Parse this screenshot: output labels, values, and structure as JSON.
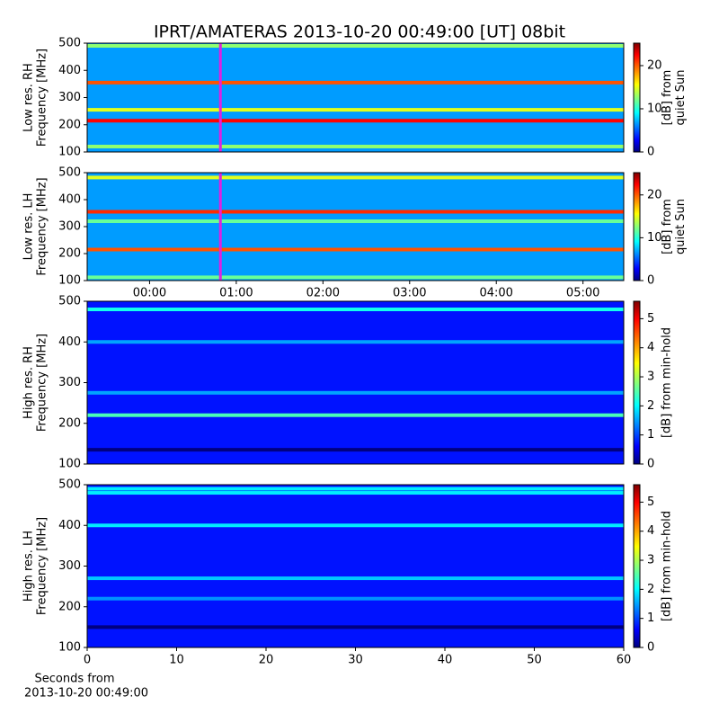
{
  "title": "IPRT/AMATERAS 2013-10-20 00:49:00 [UT]   08bit",
  "xlabel": [
    "Seconds from",
    "2013-10-20 00:49:00"
  ],
  "chart_data": [
    {
      "type": "spectrogram",
      "ylabel": [
        "Low res. RH",
        "Frequency [MHz]"
      ],
      "cbar_label": [
        "[dB] from",
        "quiet Sun"
      ],
      "xlim": [
        -0.72,
        5.47
      ],
      "xticks": [],
      "ylim": [
        100,
        500
      ],
      "yticks": [
        100,
        200,
        300,
        400,
        500
      ],
      "clim": [
        0,
        25.2
      ],
      "cbar_ticks": [
        0,
        10,
        20
      ],
      "background_level": 7,
      "marker": 0.817,
      "marker_color": "#e020e0",
      "bands": [
        {
          "freq": 490,
          "level": 13
        },
        {
          "freq": 355,
          "level": 20
        },
        {
          "freq": 255,
          "level": 15
        },
        {
          "freq": 215,
          "level": 22
        },
        {
          "freq": 120,
          "level": 13
        }
      ]
    },
    {
      "type": "spectrogram",
      "ylabel": [
        "Low res. LH",
        "Frequency [MHz]"
      ],
      "cbar_label": [
        "[dB] from",
        "quiet Sun"
      ],
      "xlim": [
        -0.72,
        5.47
      ],
      "xticks": [
        {
          "value": 0,
          "label": "00:00"
        },
        {
          "value": 1,
          "label": "01:00"
        },
        {
          "value": 2,
          "label": "02:00"
        },
        {
          "value": 3,
          "label": "03:00"
        },
        {
          "value": 4,
          "label": "04:00"
        },
        {
          "value": 5,
          "label": "05:00"
        }
      ],
      "ylim": [
        100,
        500
      ],
      "yticks": [
        100,
        200,
        300,
        400,
        500
      ],
      "clim": [
        0,
        25.2
      ],
      "cbar_ticks": [
        0,
        10,
        20
      ],
      "background_level": 7,
      "marker": 0.817,
      "marker_color": "#e020e0",
      "bands": [
        {
          "freq": 482,
          "level": 15
        },
        {
          "freq": 355,
          "level": 21
        },
        {
          "freq": 320,
          "level": 12
        },
        {
          "freq": 215,
          "level": 20
        },
        {
          "freq": 112,
          "level": 12
        }
      ]
    },
    {
      "type": "spectrogram",
      "ylabel": [
        "High res. RH",
        "Frequency [MHz]"
      ],
      "cbar_label": [
        "[dB] from min-hold"
      ],
      "xlim": [
        0,
        60
      ],
      "xticks": [],
      "ylim": [
        100,
        500
      ],
      "yticks": [
        100,
        200,
        300,
        400,
        500
      ],
      "clim": [
        0,
        5.6
      ],
      "cbar_ticks": [
        0,
        1,
        2,
        3,
        4,
        5
      ],
      "background_level": 0.8,
      "bands": [
        {
          "freq": 480,
          "level": 2.2
        },
        {
          "freq": 400,
          "level": 1.6
        },
        {
          "freq": 275,
          "level": 1.6
        },
        {
          "freq": 220,
          "level": 2.5
        },
        {
          "freq": 135,
          "level": 0
        }
      ]
    },
    {
      "type": "spectrogram",
      "ylabel": [
        "High res. LH",
        "Frequency [MHz]"
      ],
      "cbar_label": [
        "[dB] from min-hold"
      ],
      "xlim": [
        0,
        60
      ],
      "xticks": [
        0,
        10,
        20,
        30,
        40,
        50,
        60
      ],
      "ylim": [
        100,
        500
      ],
      "yticks": [
        100,
        200,
        300,
        400,
        500
      ],
      "clim": [
        0,
        5.6
      ],
      "cbar_ticks": [
        0,
        1,
        2,
        3,
        4,
        5
      ],
      "background_level": 0.8,
      "bands": [
        {
          "freq": 490,
          "level": 2
        },
        {
          "freq": 480,
          "level": 2
        },
        {
          "freq": 400,
          "level": 2
        },
        {
          "freq": 270,
          "level": 1.8
        },
        {
          "freq": 220,
          "level": 1.5
        },
        {
          "freq": 150,
          "level": 0
        }
      ]
    }
  ]
}
